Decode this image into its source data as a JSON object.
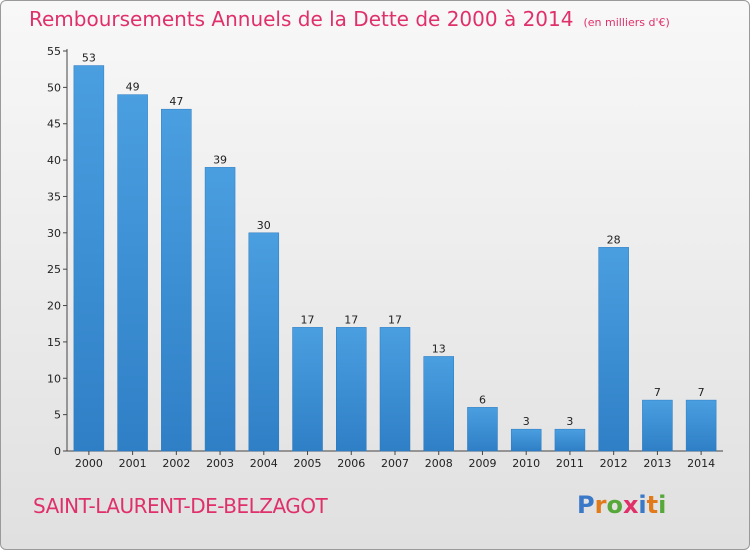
{
  "title": "Remboursements Annuels de la Dette de 2000 à 2014",
  "subtitle": "(en milliers d'€)",
  "commune": "SAINT-LAURENT-DE-BELZAGOT",
  "logo": {
    "text": "Proxiti",
    "colors": [
      "#3a78c8",
      "#e07a1a",
      "#56a83a",
      "#e0306a",
      "#3a78c8",
      "#e07a1a",
      "#56a83a"
    ]
  },
  "colors": {
    "bar": "#4a9fe0",
    "bar_dark": "#2f7fc6",
    "title": "#e0306a",
    "grid": "#cccccc"
  },
  "chart_data": {
    "type": "bar",
    "categories": [
      "2000",
      "2001",
      "2002",
      "2003",
      "2004",
      "2005",
      "2006",
      "2007",
      "2008",
      "2009",
      "2010",
      "2011",
      "2012",
      "2013",
      "2014"
    ],
    "values": [
      53,
      49,
      47,
      39,
      30,
      17,
      17,
      17,
      13,
      6,
      3,
      3,
      28,
      7,
      7
    ],
    "title": "Remboursements Annuels de la Dette de 2000 à 2014",
    "subtitle": "(en milliers d'€)",
    "xlabel": "",
    "ylabel": "",
    "ylim": [
      0,
      55
    ],
    "yticks": [
      0,
      5,
      10,
      15,
      20,
      25,
      30,
      35,
      40,
      45,
      50,
      55
    ],
    "grid": false,
    "legend": "none"
  }
}
